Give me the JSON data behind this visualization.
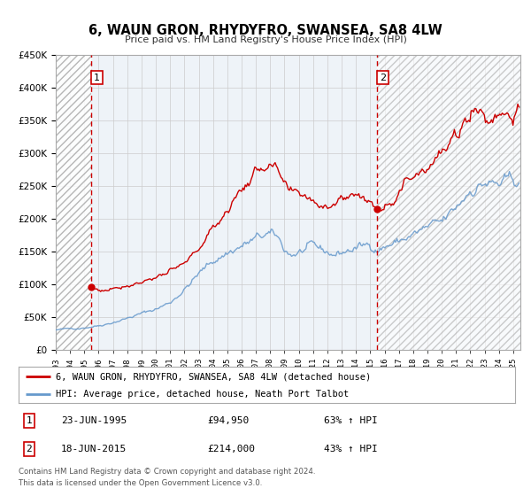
{
  "title": "6, WAUN GRON, RHYDYFRO, SWANSEA, SA8 4LW",
  "subtitle": "Price paid vs. HM Land Registry's House Price Index (HPI)",
  "legend_line1": "6, WAUN GRON, RHYDYFRO, SWANSEA, SA8 4LW (detached house)",
  "legend_line2": "HPI: Average price, detached house, Neath Port Talbot",
  "transaction1_date": "23-JUN-1995",
  "transaction1_price": "£94,950",
  "transaction1_hpi": "63% ↑ HPI",
  "transaction2_date": "18-JUN-2015",
  "transaction2_price": "£214,000",
  "transaction2_hpi": "43% ↑ HPI",
  "footer1": "Contains HM Land Registry data © Crown copyright and database right 2024.",
  "footer2": "This data is licensed under the Open Government Licence v3.0.",
  "red_color": "#cc0000",
  "blue_color": "#6699cc",
  "grid_color": "#cccccc",
  "bg_color": "#eef3f8",
  "vline1_x": 1995.47,
  "vline2_x": 2015.46,
  "dot1_x": 1995.47,
  "dot1_y": 94950,
  "dot2_x": 2015.46,
  "dot2_y": 214000,
  "xlim": [
    1993.0,
    2025.5
  ],
  "ylim": [
    0,
    450000
  ],
  "yticks": [
    0,
    50000,
    100000,
    150000,
    200000,
    250000,
    300000,
    350000,
    400000,
    450000
  ],
  "xticks": [
    1993,
    1994,
    1995,
    1996,
    1997,
    1998,
    1999,
    2000,
    2001,
    2002,
    2003,
    2004,
    2005,
    2006,
    2007,
    2008,
    2009,
    2010,
    2011,
    2012,
    2013,
    2014,
    2015,
    2016,
    2017,
    2018,
    2019,
    2020,
    2021,
    2022,
    2023,
    2024,
    2025
  ]
}
